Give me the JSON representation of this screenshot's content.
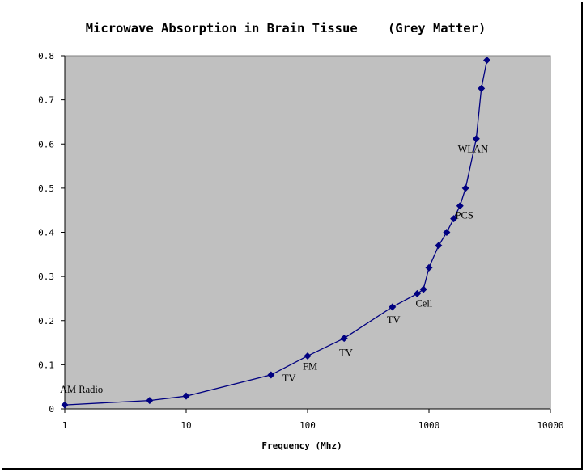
{
  "chart_data": {
    "type": "line",
    "title": "Microwave Absorption in Brain Tissue    (Grey Matter)",
    "xlabel": "Frequency (Mhz)",
    "ylabel": "",
    "x_scale": "log",
    "xlim": [
      1,
      10000
    ],
    "ylim": [
      0,
      0.8
    ],
    "x_ticks": [
      1,
      10,
      100,
      1000,
      10000
    ],
    "x_tick_labels": [
      "1",
      "10",
      "100",
      "1000",
      "10000"
    ],
    "y_ticks": [
      0,
      0.1,
      0.2,
      0.3,
      0.4,
      0.5,
      0.6,
      0.7,
      0.8
    ],
    "y_tick_labels": [
      "0",
      "0.1",
      "0.2",
      "0.3",
      "0.4",
      "0.5",
      "0.6",
      "0.7",
      "0.8"
    ],
    "grid": false,
    "legend": "none",
    "colors": {
      "plot_background": "#c0c0c0",
      "series": "#000080"
    },
    "series": [
      {
        "x": [
          1,
          5,
          10,
          50,
          100,
          200,
          500,
          800,
          900,
          1000,
          1200,
          1400,
          1600,
          1800,
          2000,
          2450,
          2700,
          3000
        ],
        "y": [
          0.009,
          0.019,
          0.029,
          0.077,
          0.12,
          0.16,
          0.231,
          0.261,
          0.271,
          0.32,
          0.37,
          0.4,
          0.431,
          0.46,
          0.5,
          0.612,
          0.726,
          0.79
        ]
      }
    ],
    "annotations": [
      {
        "text": "AM Radio",
        "x": 1,
        "y": 0.009
      },
      {
        "text": "TV",
        "x": 50,
        "y": 0.077
      },
      {
        "text": "FM",
        "x": 100,
        "y": 0.12
      },
      {
        "text": "TV",
        "x": 200,
        "y": 0.16
      },
      {
        "text": "TV",
        "x": 500,
        "y": 0.231
      },
      {
        "text": "Cell",
        "x": 800,
        "y": 0.261
      },
      {
        "text": "PCS",
        "x": 1600,
        "y": 0.431
      },
      {
        "text": "WLAN",
        "x": 2450,
        "y": 0.612
      }
    ]
  }
}
